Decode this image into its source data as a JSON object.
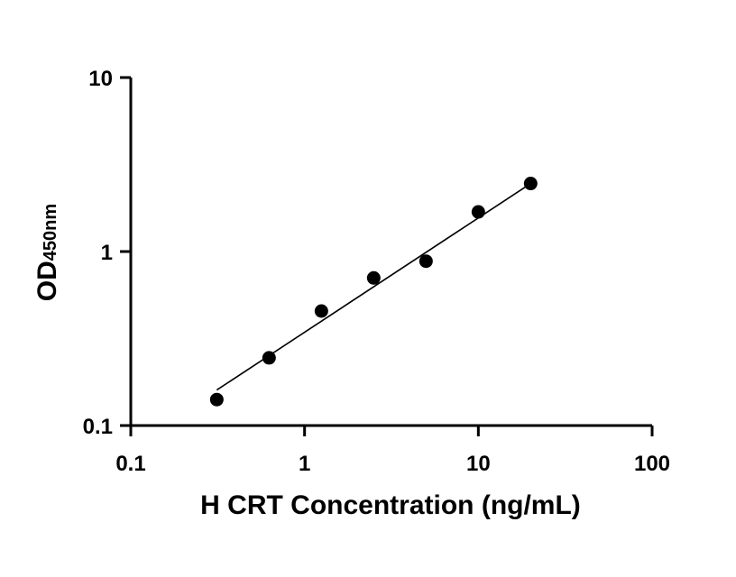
{
  "chart_data": {
    "type": "scatter",
    "xlabel": "H CRT Concentration (ng/mL)",
    "ylabel_main": "OD",
    "ylabel_sub": "450nm",
    "x_scale": "log",
    "y_scale": "log",
    "xlim": [
      0.1,
      100
    ],
    "ylim": [
      0.1,
      10
    ],
    "x_ticks": [
      {
        "value": 0.1,
        "label": "0.1"
      },
      {
        "value": 1,
        "label": "1"
      },
      {
        "value": 10,
        "label": "10"
      },
      {
        "value": 100,
        "label": "100"
      }
    ],
    "y_ticks": [
      {
        "value": 0.1,
        "label": "0.1"
      },
      {
        "value": 1,
        "label": "1"
      },
      {
        "value": 10,
        "label": "10"
      }
    ],
    "grid": false,
    "points": [
      {
        "x": 0.3125,
        "y": 0.141
      },
      {
        "x": 0.625,
        "y": 0.245
      },
      {
        "x": 1.25,
        "y": 0.455
      },
      {
        "x": 2.5,
        "y": 0.705
      },
      {
        "x": 5,
        "y": 0.88
      },
      {
        "x": 10,
        "y": 1.69
      },
      {
        "x": 20,
        "y": 2.46
      }
    ],
    "fit_line": {
      "x_start": 0.3125,
      "y_start": 0.16,
      "x_end": 20,
      "y_end": 2.46
    },
    "colors": {
      "points": "#000000",
      "line": "#000000",
      "axes": "#000000"
    }
  }
}
